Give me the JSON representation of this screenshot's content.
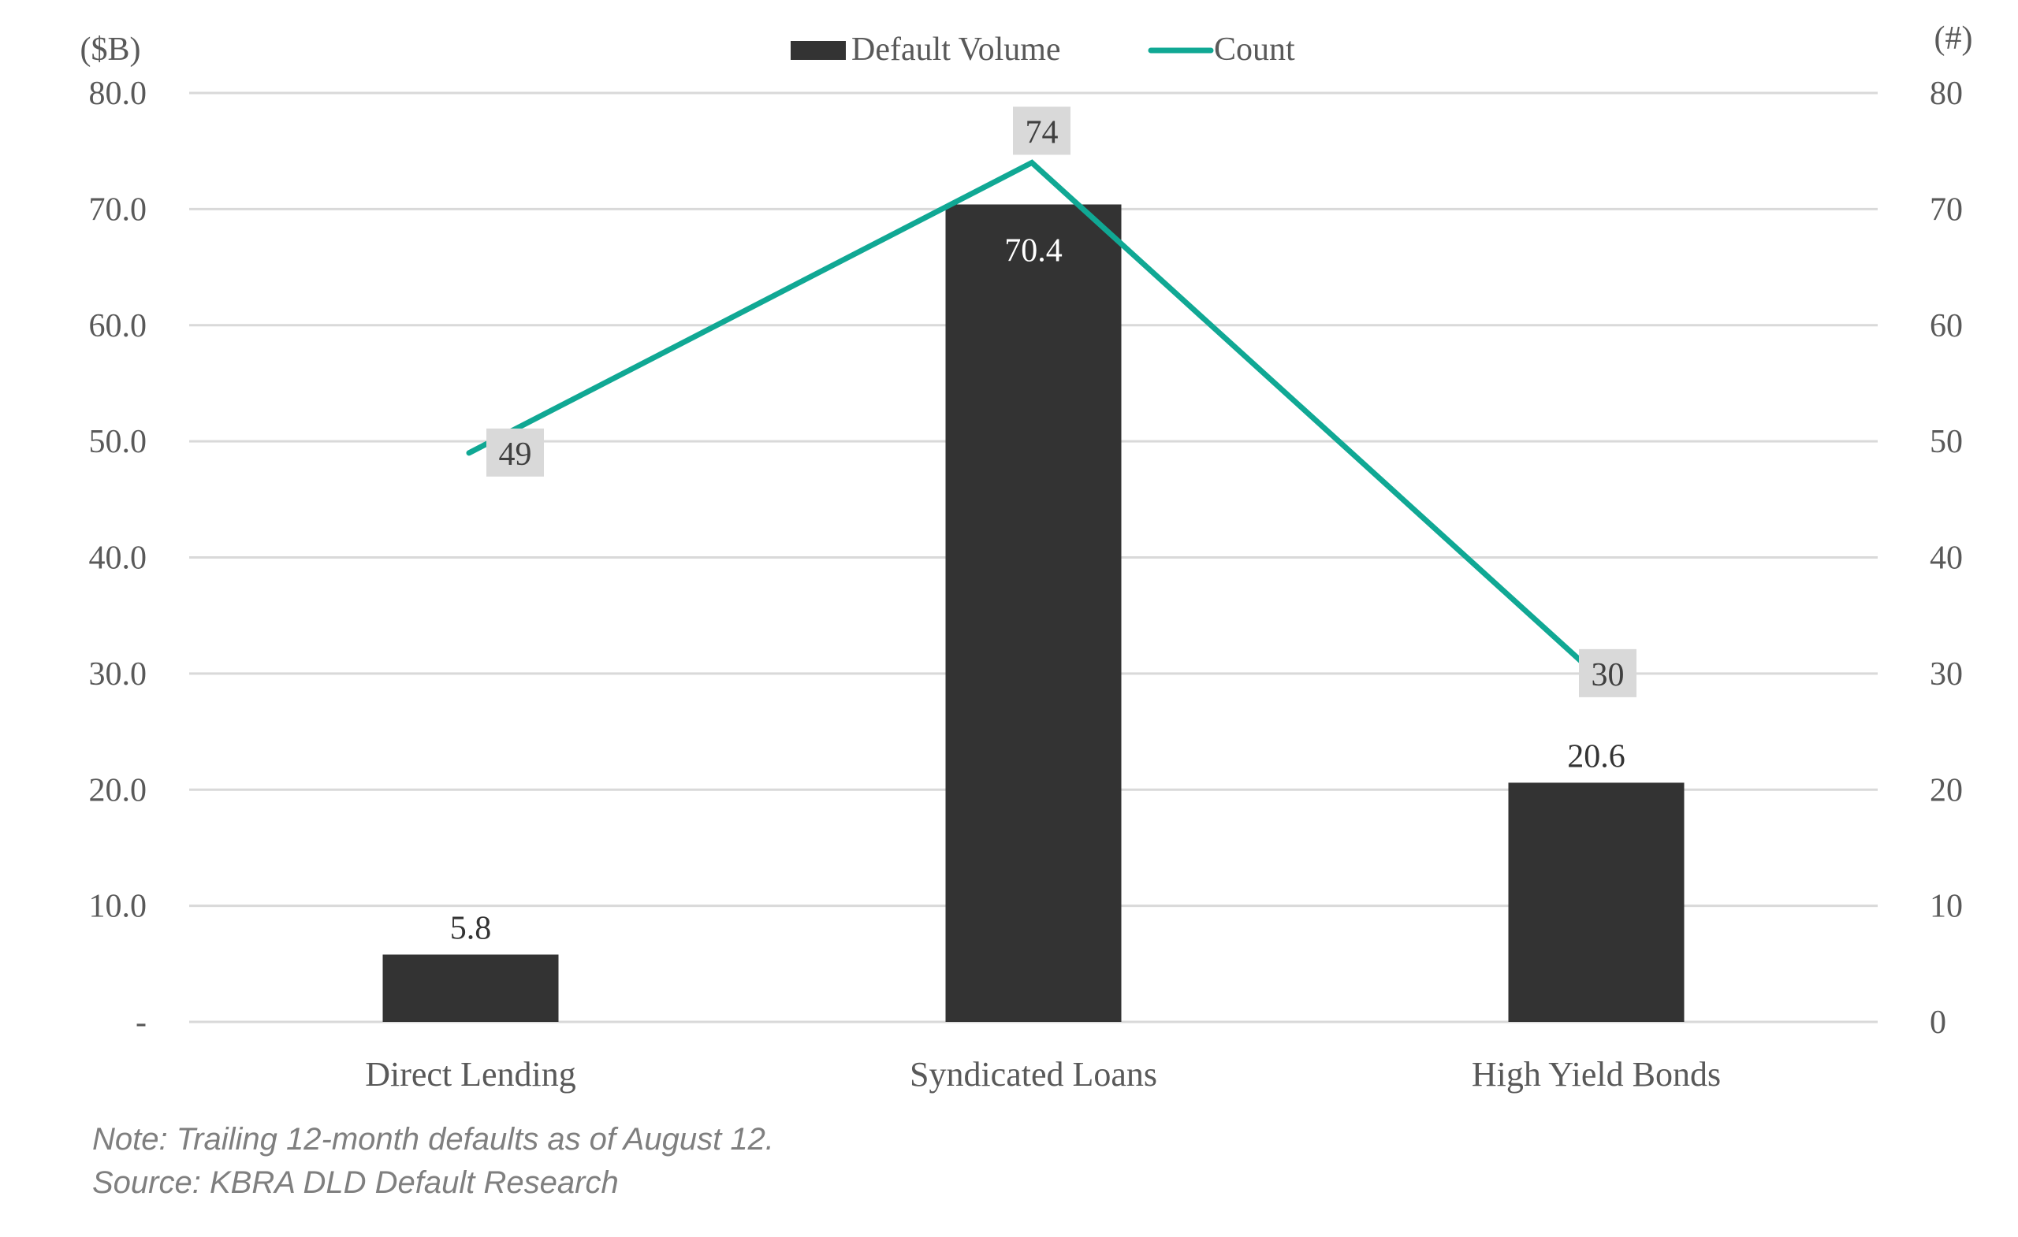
{
  "chart_data": {
    "type": "bar",
    "title": "",
    "categories": [
      "Direct Lending",
      "Syndicated Loans",
      "High Yield Bonds"
    ],
    "series": [
      {
        "name": "Default Volume",
        "type": "bar",
        "axis": "left",
        "values": [
          5.8,
          70.4,
          20.6
        ],
        "labels": [
          "5.8",
          "70.4",
          "20.6"
        ],
        "color": "#333333"
      },
      {
        "name": "Count",
        "type": "line",
        "axis": "right",
        "values": [
          49,
          74,
          30
        ],
        "labels": [
          "49",
          "74",
          "30"
        ],
        "color": "#10a894"
      }
    ],
    "y_left": {
      "label": "($B)",
      "ylim": [
        0,
        80
      ],
      "ticks": [
        0,
        10,
        20,
        30,
        40,
        50,
        60,
        70,
        80
      ],
      "tick_labels": [
        "-",
        "10.0",
        "20.0",
        "30.0",
        "40.0",
        "50.0",
        "60.0",
        "70.0",
        "80.0"
      ]
    },
    "y_right": {
      "label": "(#)",
      "ylim": [
        0,
        80
      ],
      "ticks": [
        0,
        10,
        20,
        30,
        40,
        50,
        60,
        70,
        80
      ],
      "tick_labels": [
        "0",
        "10",
        "20",
        "30",
        "40",
        "50",
        "60",
        "70",
        "80"
      ]
    },
    "grid": true,
    "legend": {
      "position": "top-center",
      "entries": [
        "Default Volume",
        "Count"
      ]
    }
  },
  "notes": {
    "note": "Note: Trailing 12-month defaults as of August 12.",
    "source": "Source: KBRA DLD Default Research"
  },
  "colors": {
    "bar": "#333333",
    "line": "#10a894",
    "grid": "#d9d9d9",
    "label_box": "#d9d9d9",
    "axis_text": "#595959"
  }
}
